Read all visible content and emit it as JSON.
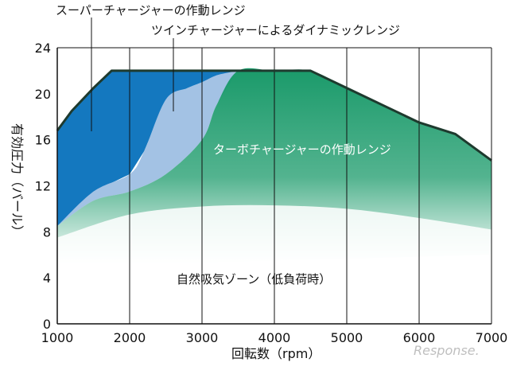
{
  "chart_data": {
    "type": "area",
    "xlabel": "回転数（rpm）",
    "ylabel": "有効圧力（バール）",
    "xlim": [
      1000,
      7000
    ],
    "ylim": [
      0,
      24
    ],
    "x_ticks": [
      "1000",
      "2000",
      "3000",
      "4000",
      "5000",
      "6000",
      "7000"
    ],
    "y_ticks": [
      "0",
      "4",
      "8",
      "12",
      "16",
      "20",
      "24"
    ],
    "grid": "vertical",
    "colors": {
      "supercharger": "#1478bf",
      "twincharger": "#a3c2e4",
      "turbo": "#1a9a6a",
      "outline": "#1e3a2e"
    },
    "series": [
      {
        "name": "スーパーチャージャーの作動レンジ",
        "x": [
          1000,
          1200,
          1500,
          1750,
          2000,
          2500,
          3000,
          3500,
          4000,
          4500
        ],
        "y": [
          16.8,
          18.5,
          20.5,
          22,
          22,
          22,
          22,
          22,
          22,
          22
        ]
      },
      {
        "name": "ツインチャージャーによるダイナミックレンジ",
        "x": [
          1000,
          1500,
          2000,
          2200,
          2500,
          2800,
          3000,
          3200,
          3500
        ],
        "y": [
          8.5,
          11.5,
          13,
          15,
          19.5,
          20.5,
          21,
          21.6,
          22
        ]
      },
      {
        "name": "ターボチャージャーの作動レンジ",
        "x": [
          1000,
          1500,
          2000,
          2500,
          3000,
          3200,
          3500,
          4000,
          4500,
          5000,
          5500,
          6000,
          6500,
          7000
        ],
        "y": [
          8.5,
          10.7,
          11.5,
          13,
          16,
          19,
          22,
          22,
          22,
          20.5,
          19,
          17.5,
          16.5,
          14.2
        ]
      },
      {
        "name": "自然吸気ゾーン（低負荷時）",
        "x": [
          1000,
          2000,
          3000,
          4000,
          5000,
          6000,
          7000
        ],
        "y": [
          7.5,
          9.5,
          10.2,
          10.3,
          10,
          9.2,
          8.2
        ]
      }
    ],
    "annotations": [
      "スーパーチャージャーの作動レンジ",
      "ツインチャージャーによるダイナミックレンジ",
      "ターボチャージャーの作動レンジ",
      "自然吸気ゾーン（低負荷時）"
    ]
  },
  "watermark": "Response."
}
